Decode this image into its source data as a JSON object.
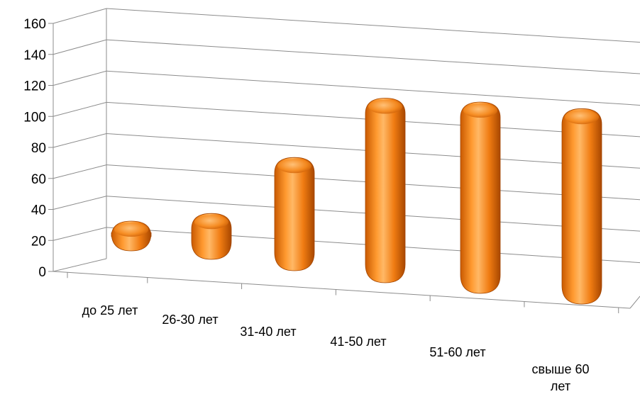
{
  "chart_data": {
    "type": "bar",
    "style": "3d-cylinder",
    "categories": [
      "до 25 лет",
      "26-30 лет",
      "31-40 лет",
      "41-50 лет",
      "51-60 лет",
      "свыше 60 лет"
    ],
    "values": [
      20,
      32,
      82,
      135,
      140,
      143
    ],
    "ylim": [
      0,
      160
    ],
    "yticks": [
      "0",
      "20",
      "40",
      "60",
      "80",
      "100",
      "120",
      "140",
      "160"
    ],
    "title": "",
    "xlabel": "",
    "ylabel": "",
    "grid": true,
    "legend": "none",
    "colors": {
      "bar": "#f07c12",
      "bar_dark": "#b84f00",
      "bar_light": "#ffc27a",
      "grid": "#8c8c8c"
    }
  }
}
